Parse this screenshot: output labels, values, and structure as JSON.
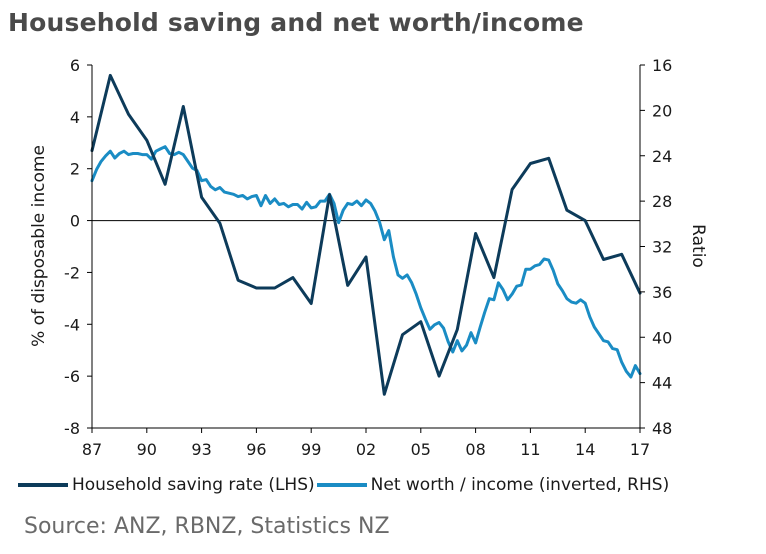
{
  "title": "Household saving and net worth/income",
  "source": "Source: ANZ, RBNZ, Statistics NZ",
  "colors": {
    "saving": "#0d3b5a",
    "networth": "#1a8cc4",
    "axis": "#000000"
  },
  "chart_data": {
    "type": "line",
    "title": "Household saving and net worth/income",
    "ylabel": "% of disposable income",
    "y2label": "Ratio",
    "x_tick_labels": [
      "87",
      "90",
      "93",
      "96",
      "99",
      "02",
      "05",
      "08",
      "11",
      "14",
      "17"
    ],
    "xlim": [
      1987,
      2017
    ],
    "ylim": [
      -8,
      6
    ],
    "y_ticks": [
      6,
      4,
      2,
      0,
      -2,
      -4,
      -6,
      -8
    ],
    "y2lim": [
      16,
      48
    ],
    "y2_inverted": true,
    "y2_ticks": [
      16,
      20,
      24,
      28,
      32,
      36,
      40,
      44,
      48
    ],
    "series": [
      {
        "name": "Household saving rate (LHS)",
        "axis": "left",
        "x": [
          1987.0,
          1988.0,
          1989.0,
          1990.0,
          1991.0,
          1992.0,
          1993.0,
          1994.0,
          1995.0,
          1996.0,
          1997.0,
          1998.0,
          1999.0,
          2000.0,
          2001.0,
          2002.0,
          2003.0,
          2004.0,
          2005.0,
          2006.0,
          2007.0,
          2008.0,
          2009.0,
          2010.0,
          2011.0,
          2012.0,
          2013.0,
          2014.0,
          2015.0,
          2016.0,
          2017.0
        ],
        "values": [
          2.7,
          5.6,
          4.1,
          3.1,
          1.4,
          4.4,
          0.9,
          -0.1,
          -2.3,
          -2.6,
          -2.6,
          -2.2,
          -3.2,
          1.0,
          -2.5,
          -1.4,
          -6.7,
          -4.4,
          -3.9,
          -6.0,
          -4.2,
          -0.5,
          -2.2,
          1.2,
          2.2,
          2.4,
          0.4,
          0.0,
          -1.5,
          -1.3,
          -2.8
        ]
      },
      {
        "name": "Net worth / income (inverted, RHS)",
        "axis": "right",
        "x": [
          1987.0,
          1987.25,
          1987.5,
          1987.75,
          1988.0,
          1988.25,
          1988.5,
          1988.75,
          1989.0,
          1989.25,
          1989.5,
          1989.75,
          1990.0,
          1990.25,
          1990.5,
          1990.75,
          1991.0,
          1991.25,
          1991.5,
          1991.75,
          1992.0,
          1992.25,
          1992.5,
          1992.75,
          1993.0,
          1993.25,
          1993.5,
          1993.75,
          1994.0,
          1994.25,
          1994.5,
          1994.75,
          1995.0,
          1995.25,
          1995.5,
          1995.75,
          1996.0,
          1996.25,
          1996.5,
          1996.75,
          1997.0,
          1997.25,
          1997.5,
          1997.75,
          1998.0,
          1998.25,
          1998.5,
          1998.75,
          1999.0,
          1999.25,
          1999.5,
          1999.75,
          2000.0,
          2000.25,
          2000.5,
          2000.75,
          2001.0,
          2001.25,
          2001.5,
          2001.75,
          2002.0,
          2002.25,
          2002.5,
          2002.75,
          2003.0,
          2003.25,
          2003.5,
          2003.75,
          2004.0,
          2004.25,
          2004.5,
          2004.75,
          2005.0,
          2005.25,
          2005.5,
          2005.75,
          2006.0,
          2006.25,
          2006.5,
          2006.75,
          2007.0,
          2007.25,
          2007.5,
          2007.75,
          2008.0,
          2008.25,
          2008.5,
          2008.75,
          2009.0,
          2009.25,
          2009.5,
          2009.75,
          2010.0,
          2010.25,
          2010.5,
          2010.75,
          2011.0,
          2011.25,
          2011.5,
          2011.75,
          2012.0,
          2012.25,
          2012.5,
          2012.75,
          2013.0,
          2013.25,
          2013.5,
          2013.75,
          2014.0,
          2014.25,
          2014.5,
          2014.75,
          2015.0,
          2015.25,
          2015.5,
          2015.75,
          2016.0,
          2016.25,
          2016.5,
          2016.75,
          2017.0
        ],
        "values": [
          26.2,
          25.2,
          24.5,
          24.0,
          23.6,
          24.2,
          23.8,
          23.6,
          23.9,
          23.8,
          23.8,
          23.9,
          23.9,
          24.3,
          23.6,
          23.4,
          23.2,
          23.8,
          23.9,
          23.7,
          23.9,
          24.5,
          25.1,
          25.3,
          26.2,
          26.1,
          26.7,
          27.0,
          26.8,
          27.2,
          27.3,
          27.4,
          27.6,
          27.5,
          27.8,
          27.6,
          27.5,
          28.4,
          27.5,
          28.2,
          27.8,
          28.3,
          28.2,
          28.5,
          28.3,
          28.3,
          28.7,
          28.1,
          28.6,
          28.5,
          28.0,
          28.0,
          27.4,
          28.2,
          29.9,
          28.8,
          28.2,
          28.3,
          28.0,
          28.4,
          27.9,
          28.2,
          28.9,
          29.9,
          31.4,
          30.6,
          32.9,
          34.5,
          34.8,
          34.5,
          35.2,
          36.2,
          37.4,
          38.4,
          39.3,
          38.9,
          38.7,
          39.2,
          40.4,
          41.3,
          40.3,
          41.2,
          40.7,
          39.6,
          40.5,
          39.1,
          37.8,
          36.6,
          36.7,
          35.2,
          35.8,
          36.7,
          36.2,
          35.5,
          35.4,
          34.0,
          34.0,
          33.7,
          33.6,
          33.1,
          33.2,
          34.1,
          35.3,
          35.9,
          36.6,
          36.9,
          37.0,
          36.7,
          37.0,
          38.2,
          39.1,
          39.7,
          40.3,
          40.4,
          41.0,
          41.1,
          42.2,
          43.0,
          43.5,
          42.5,
          43.2
        ]
      }
    ],
    "legend": [
      "Household saving rate (LHS)",
      "Net worth / income (inverted, RHS)"
    ],
    "legend_position": "bottom"
  }
}
